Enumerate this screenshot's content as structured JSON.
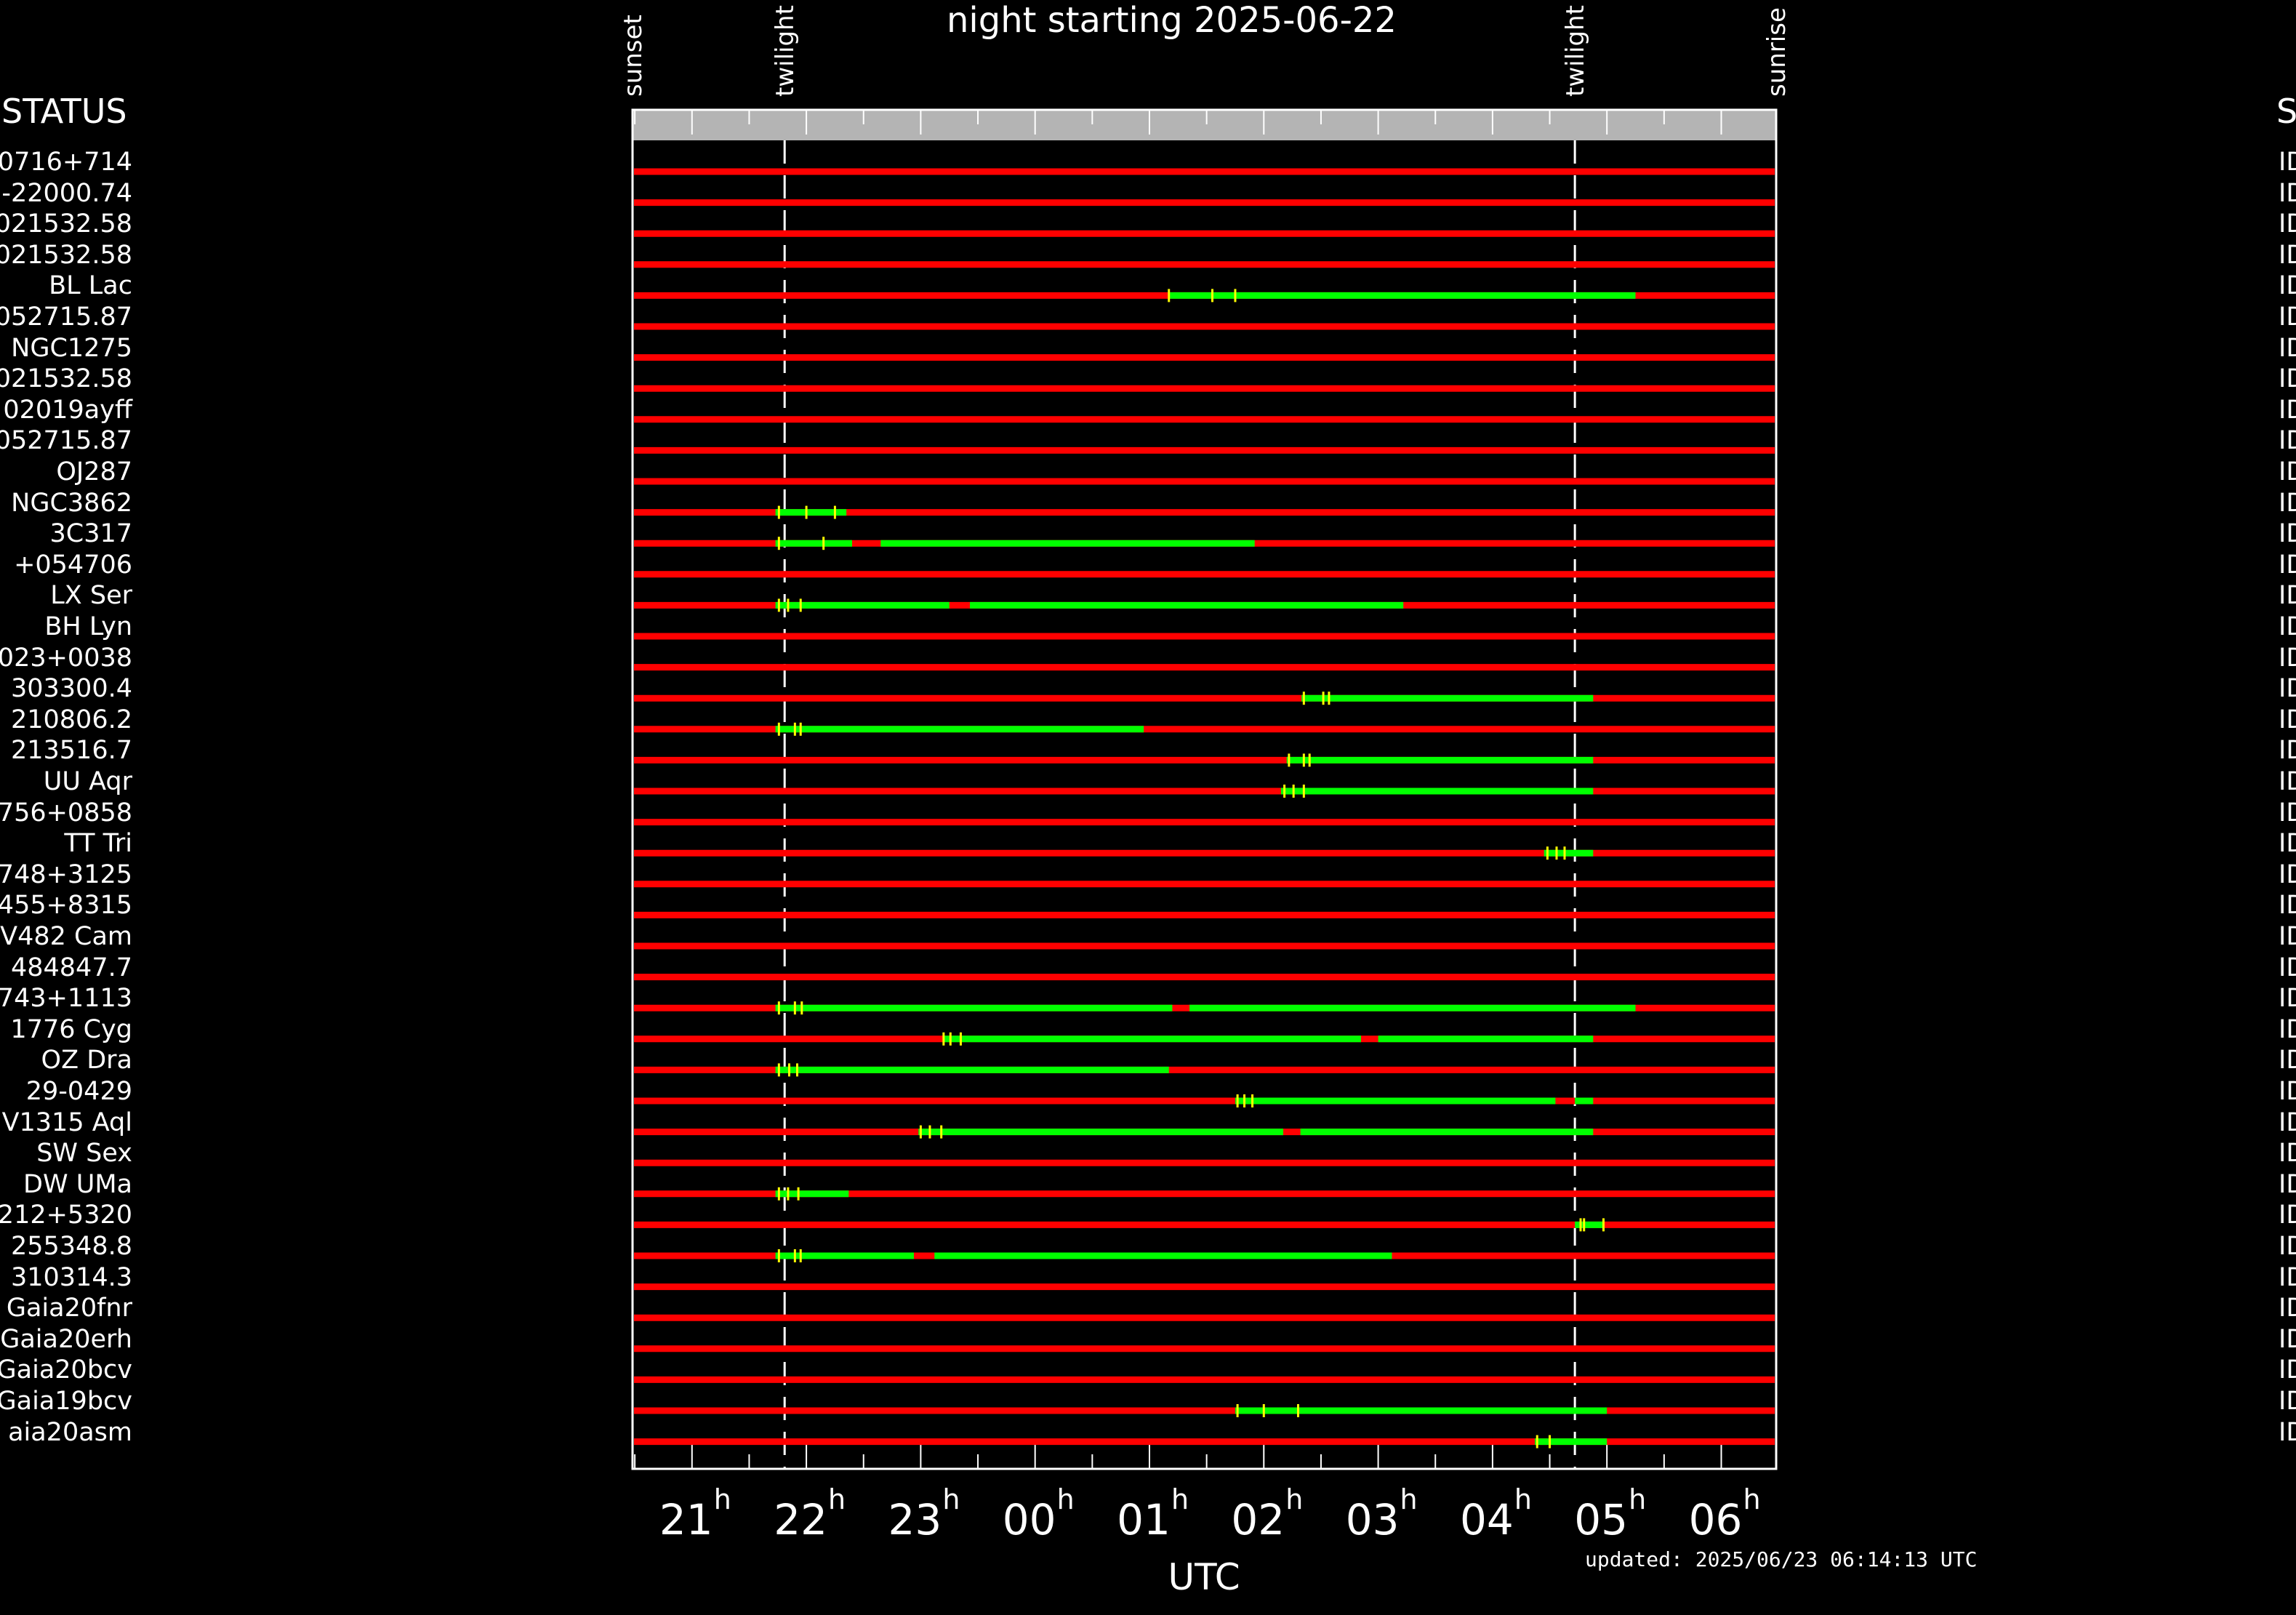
{
  "header": {
    "title": "night starting 2025-06-22",
    "left_label": "STATUS",
    "right_label": "S",
    "updated": "updated: 2025/06/23 06:14:13 UTC"
  },
  "chart_data": {
    "type": "timeline",
    "x_unit": "UTC hour (24h, wraps past midnight)",
    "x_range": [
      20.48,
      30.48
    ],
    "xlabel": "UTC",
    "x_ticks": [
      {
        "hour": 21,
        "label": "21"
      },
      {
        "hour": 22,
        "label": "22"
      },
      {
        "hour": 23,
        "label": "23"
      },
      {
        "hour": 24,
        "label": "00"
      },
      {
        "hour": 25,
        "label": "01"
      },
      {
        "hour": 26,
        "label": "02"
      },
      {
        "hour": 27,
        "label": "03"
      },
      {
        "hour": 28,
        "label": "04"
      },
      {
        "hour": 29,
        "label": "05"
      },
      {
        "hour": 30,
        "label": "06"
      }
    ],
    "tick_suffix": "h",
    "events": [
      {
        "label": "sunset",
        "hour": 20.48,
        "line": false
      },
      {
        "label": "twilight",
        "hour": 21.81,
        "line": true
      },
      {
        "label": "twilight",
        "hour": 28.72,
        "line": true
      },
      {
        "label": "sunrise",
        "hour": 30.48,
        "line": false
      }
    ],
    "colors": {
      "unobservable": "#ff0000",
      "observable": "#00ff00",
      "marker": "#ffff00",
      "daylight_bar": "#b4b4b4"
    },
    "targets": [
      {
        "name": "0716+714",
        "status": "ID",
        "observable": [],
        "marks": []
      },
      {
        "name": "-22000.74",
        "status": "ID",
        "observable": [],
        "marks": []
      },
      {
        "name": "021532.58",
        "status": "ID",
        "observable": [],
        "marks": []
      },
      {
        "name": "021532.58",
        "status": "ID",
        "observable": [],
        "marks": []
      },
      {
        "name": "BL Lac",
        "status": "ID",
        "observable": [
          [
            25.17,
            29.25
          ]
        ],
        "marks": [
          25.17,
          25.55,
          25.75
        ]
      },
      {
        "name": "052715.87",
        "status": "ID",
        "observable": [],
        "marks": []
      },
      {
        "name": "NGC1275",
        "status": "ID",
        "observable": [],
        "marks": []
      },
      {
        "name": "021532.58",
        "status": "ID",
        "observable": [],
        "marks": []
      },
      {
        "name": "02019ayff",
        "status": "ID",
        "observable": [],
        "marks": []
      },
      {
        "name": "052715.87",
        "status": "ID",
        "observable": [],
        "marks": []
      },
      {
        "name": "OJ287",
        "status": "ID",
        "observable": [],
        "marks": []
      },
      {
        "name": "NGC3862",
        "status": "ID",
        "observable": [
          [
            21.73,
            22.35
          ]
        ],
        "marks": [
          21.76,
          22.0,
          22.25
        ]
      },
      {
        "name": "3C317",
        "status": "ID",
        "observable": [
          [
            21.73,
            22.4
          ],
          [
            22.65,
            25.92
          ]
        ],
        "marks": [
          21.76,
          22.15
        ]
      },
      {
        "name": "+054706",
        "status": "ID",
        "observable": [],
        "marks": []
      },
      {
        "name": "LX Ser",
        "status": "ID",
        "observable": [
          [
            21.73,
            23.25
          ],
          [
            23.43,
            27.22
          ]
        ],
        "marks": [
          21.76,
          21.84,
          21.95
        ]
      },
      {
        "name": "BH Lyn",
        "status": "ID",
        "observable": [],
        "marks": []
      },
      {
        "name": "023+0038",
        "status": "ID",
        "observable": [],
        "marks": []
      },
      {
        "name": "303300.4",
        "status": "ID",
        "observable": [
          [
            26.33,
            28.88
          ]
        ],
        "marks": [
          26.35,
          26.52,
          26.57
        ]
      },
      {
        "name": "210806.2",
        "status": "ID",
        "observable": [
          [
            21.73,
            24.95
          ]
        ],
        "marks": [
          21.76,
          21.9,
          21.95
        ]
      },
      {
        "name": "213516.7",
        "status": "ID",
        "observable": [
          [
            26.2,
            28.88
          ]
        ],
        "marks": [
          26.22,
          26.35,
          26.4
        ]
      },
      {
        "name": "UU Aqr",
        "status": "ID",
        "observable": [
          [
            26.15,
            28.88
          ]
        ],
        "marks": [
          26.18,
          26.26,
          26.35
        ]
      },
      {
        "name": "756+0858",
        "status": "ID",
        "observable": [],
        "marks": []
      },
      {
        "name": "TT Tri",
        "status": "ID",
        "observable": [
          [
            28.45,
            28.88
          ]
        ],
        "marks": [
          28.48,
          28.56,
          28.63
        ]
      },
      {
        "name": "748+3125",
        "status": "ID",
        "observable": [],
        "marks": []
      },
      {
        "name": "455+8315",
        "status": "ID",
        "observable": [],
        "marks": []
      },
      {
        "name": "V482 Cam",
        "status": "ID",
        "observable": [],
        "marks": []
      },
      {
        "name": "484847.7",
        "status": "ID",
        "observable": [],
        "marks": []
      },
      {
        "name": "743+1113",
        "status": "ID",
        "observable": [
          [
            21.73,
            25.2
          ],
          [
            25.35,
            29.25
          ]
        ],
        "marks": [
          21.76,
          21.9,
          21.96
        ]
      },
      {
        "name": "1776 Cyg",
        "status": "ID",
        "observable": [
          [
            23.2,
            26.85
          ],
          [
            27.0,
            28.88
          ]
        ],
        "marks": [
          23.2,
          23.26,
          23.35
        ]
      },
      {
        "name": "OZ Dra",
        "status": "ID",
        "observable": [
          [
            21.73,
            25.17
          ]
        ],
        "marks": [
          21.76,
          21.85,
          21.92
        ]
      },
      {
        "name": "29-0429",
        "status": "ID",
        "observable": [
          [
            25.75,
            28.55
          ],
          [
            28.72,
            28.88
          ]
        ],
        "marks": [
          25.77,
          25.83,
          25.9
        ]
      },
      {
        "name": "V1315 Aql",
        "status": "ID",
        "observable": [
          [
            22.98,
            26.17
          ],
          [
            26.32,
            28.88
          ]
        ],
        "marks": [
          23.0,
          23.08,
          23.18
        ]
      },
      {
        "name": "SW Sex",
        "status": "ID",
        "observable": [],
        "marks": []
      },
      {
        "name": "DW UMa",
        "status": "ID",
        "observable": [
          [
            21.73,
            22.37
          ]
        ],
        "marks": [
          21.76,
          21.84,
          21.93
        ]
      },
      {
        "name": "212+5320",
        "status": "ID",
        "observable": [
          [
            28.72,
            28.97
          ]
        ],
        "marks": [
          28.77,
          28.8,
          28.97
        ]
      },
      {
        "name": "255348.8",
        "status": "ID",
        "observable": [
          [
            21.73,
            22.94
          ],
          [
            23.12,
            27.12
          ]
        ],
        "marks": [
          21.76,
          21.9,
          21.95
        ]
      },
      {
        "name": "310314.3",
        "status": "ID",
        "observable": [],
        "marks": []
      },
      {
        "name": "Gaia20fnr",
        "status": "ID",
        "observable": [],
        "marks": []
      },
      {
        "name": "Gaia20erh",
        "status": "ID",
        "observable": [],
        "marks": []
      },
      {
        "name": "Gaia20bcv",
        "status": "ID",
        "observable": [],
        "marks": []
      },
      {
        "name": "Gaia19bcv",
        "status": "ID",
        "observable": [
          [
            25.75,
            29.0
          ]
        ],
        "marks": [
          25.77,
          26.0,
          26.3
        ]
      },
      {
        "name": "aia20asm",
        "status": "ID",
        "observable": [
          [
            28.37,
            29.0
          ]
        ],
        "marks": [
          28.39,
          28.5
        ]
      }
    ]
  }
}
